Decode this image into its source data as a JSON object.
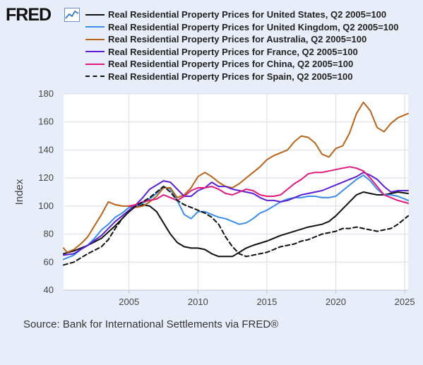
{
  "header": {
    "logo_text": "FRED",
    "logo_icon": "line-chart-icon"
  },
  "source_note": "Source: Bank for International Settlements via FRED®",
  "colors": {
    "panel_bg": "#e8eef9",
    "grid": "#d8dde6",
    "axis": "#bfc5cf"
  },
  "chart_data": {
    "type": "line",
    "xlabel": "",
    "ylabel": "Index",
    "xlim": [
      2000.25,
      2025.25
    ],
    "ylim": [
      40,
      180
    ],
    "yticks": [
      40,
      60,
      80,
      100,
      120,
      140,
      160,
      180
    ],
    "xticks": [
      2005,
      2010,
      2015,
      2020,
      2025
    ],
    "grid": true,
    "legend": "top",
    "series": [
      {
        "name": "Real Residential Property Prices for United States, Q2 2005=100",
        "color": "#111111",
        "dash": "solid",
        "points": [
          [
            2000.25,
            66
          ],
          [
            2001,
            68
          ],
          [
            2002,
            72
          ],
          [
            2003,
            77
          ],
          [
            2004,
            86
          ],
          [
            2005,
            96
          ],
          [
            2005.5,
            100
          ],
          [
            2006,
            101
          ],
          [
            2006.5,
            100
          ],
          [
            2007,
            96
          ],
          [
            2007.5,
            88
          ],
          [
            2008,
            80
          ],
          [
            2008.5,
            74
          ],
          [
            2009,
            71
          ],
          [
            2009.5,
            70
          ],
          [
            2010,
            70
          ],
          [
            2010.5,
            69
          ],
          [
            2011,
            66
          ],
          [
            2011.5,
            64
          ],
          [
            2012,
            64
          ],
          [
            2012.5,
            64
          ],
          [
            2013,
            67
          ],
          [
            2013.5,
            70
          ],
          [
            2014,
            72
          ],
          [
            2015,
            75
          ],
          [
            2016,
            79
          ],
          [
            2017,
            82
          ],
          [
            2018,
            85
          ],
          [
            2019,
            87
          ],
          [
            2019.5,
            89
          ],
          [
            2020,
            93
          ],
          [
            2020.5,
            98
          ],
          [
            2021,
            103
          ],
          [
            2021.5,
            108
          ],
          [
            2022,
            110
          ],
          [
            2022.5,
            109
          ],
          [
            2023,
            108
          ],
          [
            2023.5,
            108
          ],
          [
            2024,
            109
          ],
          [
            2024.5,
            110
          ],
          [
            2025.25,
            109
          ]
        ]
      },
      {
        "name": "Real Residential Property Prices for United Kingdom, Q2 2005=100",
        "color": "#3a8ee6",
        "dash": "solid",
        "points": [
          [
            2000.25,
            62
          ],
          [
            2001,
            65
          ],
          [
            2001.5,
            69
          ],
          [
            2002,
            72
          ],
          [
            2002.5,
            77
          ],
          [
            2003,
            83
          ],
          [
            2003.5,
            87
          ],
          [
            2004,
            92
          ],
          [
            2004.5,
            95
          ],
          [
            2005,
            99
          ],
          [
            2005.5,
            100
          ],
          [
            2006,
            102
          ],
          [
            2006.5,
            105
          ],
          [
            2007,
            109
          ],
          [
            2007.5,
            114
          ],
          [
            2008,
            112
          ],
          [
            2008.5,
            104
          ],
          [
            2009,
            94
          ],
          [
            2009.5,
            91
          ],
          [
            2010,
            96
          ],
          [
            2010.5,
            96
          ],
          [
            2011,
            94
          ],
          [
            2011.5,
            92
          ],
          [
            2012,
            91
          ],
          [
            2012.5,
            89
          ],
          [
            2013,
            87
          ],
          [
            2013.5,
            88
          ],
          [
            2014,
            91
          ],
          [
            2014.5,
            95
          ],
          [
            2015,
            97
          ],
          [
            2015.5,
            100
          ],
          [
            2016,
            103
          ],
          [
            2016.5,
            105
          ],
          [
            2017,
            106
          ],
          [
            2017.5,
            106
          ],
          [
            2018,
            107
          ],
          [
            2018.5,
            107
          ],
          [
            2019,
            106
          ],
          [
            2019.5,
            106
          ],
          [
            2020,
            107
          ],
          [
            2020.5,
            111
          ],
          [
            2021,
            115
          ],
          [
            2021.5,
            119
          ],
          [
            2022,
            122
          ],
          [
            2022.5,
            118
          ],
          [
            2023,
            112
          ],
          [
            2023.5,
            108
          ],
          [
            2024,
            108
          ],
          [
            2024.5,
            107
          ],
          [
            2025.25,
            104
          ]
        ]
      },
      {
        "name": "Real Residential Property Prices for Australia, Q2 2005=100",
        "color": "#b8641a",
        "dash": "solid",
        "points": [
          [
            2000.25,
            70
          ],
          [
            2000.5,
            67
          ],
          [
            2001,
            69
          ],
          [
            2001.5,
            73
          ],
          [
            2002,
            78
          ],
          [
            2002.5,
            86
          ],
          [
            2003,
            94
          ],
          [
            2003.5,
            103
          ],
          [
            2004,
            101
          ],
          [
            2004.5,
            100
          ],
          [
            2005,
            100
          ],
          [
            2005.5,
            99
          ],
          [
            2006,
            100
          ],
          [
            2006.5,
            103
          ],
          [
            2007,
            107
          ],
          [
            2007.5,
            113
          ],
          [
            2008,
            113
          ],
          [
            2008.5,
            106
          ],
          [
            2009,
            108
          ],
          [
            2009.5,
            113
          ],
          [
            2010,
            121
          ],
          [
            2010.5,
            124
          ],
          [
            2011,
            121
          ],
          [
            2011.5,
            117
          ],
          [
            2012,
            114
          ],
          [
            2012.5,
            113
          ],
          [
            2013,
            116
          ],
          [
            2013.5,
            120
          ],
          [
            2014,
            124
          ],
          [
            2014.5,
            128
          ],
          [
            2015,
            133
          ],
          [
            2015.5,
            136
          ],
          [
            2016,
            138
          ],
          [
            2016.5,
            140
          ],
          [
            2017,
            146
          ],
          [
            2017.5,
            150
          ],
          [
            2018,
            149
          ],
          [
            2018.5,
            145
          ],
          [
            2019,
            137
          ],
          [
            2019.5,
            135
          ],
          [
            2020,
            141
          ],
          [
            2020.5,
            143
          ],
          [
            2021,
            152
          ],
          [
            2021.5,
            166
          ],
          [
            2022,
            174
          ],
          [
            2022.5,
            168
          ],
          [
            2023,
            156
          ],
          [
            2023.5,
            153
          ],
          [
            2024,
            159
          ],
          [
            2024.5,
            163
          ],
          [
            2025,
            165
          ],
          [
            2025.25,
            166
          ]
        ]
      },
      {
        "name": "Real Residential Property Prices for France, Q2 2005=100",
        "color": "#5b1fd6",
        "dash": "solid",
        "points": [
          [
            2000.25,
            65
          ],
          [
            2001,
            66
          ],
          [
            2001.5,
            69
          ],
          [
            2002,
            72
          ],
          [
            2003,
            79
          ],
          [
            2004,
            89
          ],
          [
            2004.5,
            93
          ],
          [
            2005,
            97
          ],
          [
            2005.5,
            101
          ],
          [
            2006,
            106
          ],
          [
            2006.5,
            112
          ],
          [
            2007,
            115
          ],
          [
            2007.5,
            118
          ],
          [
            2008,
            117
          ],
          [
            2008.5,
            112
          ],
          [
            2009,
            107
          ],
          [
            2009.5,
            107
          ],
          [
            2010,
            111
          ],
          [
            2010.5,
            113
          ],
          [
            2011,
            117
          ],
          [
            2011.5,
            114
          ],
          [
            2012,
            114
          ],
          [
            2012.5,
            112
          ],
          [
            2013,
            111
          ],
          [
            2013.5,
            110
          ],
          [
            2014,
            109
          ],
          [
            2014.5,
            106
          ],
          [
            2015,
            104
          ],
          [
            2015.5,
            104
          ],
          [
            2016,
            103
          ],
          [
            2016.5,
            104
          ],
          [
            2017,
            106
          ],
          [
            2017.5,
            108
          ],
          [
            2018,
            109
          ],
          [
            2018.5,
            110
          ],
          [
            2019,
            111
          ],
          [
            2019.5,
            113
          ],
          [
            2020,
            115
          ],
          [
            2020.5,
            117
          ],
          [
            2021,
            119
          ],
          [
            2021.5,
            121
          ],
          [
            2022,
            124
          ],
          [
            2022.5,
            122
          ],
          [
            2023,
            119
          ],
          [
            2023.5,
            114
          ],
          [
            2024,
            110
          ],
          [
            2024.5,
            111
          ],
          [
            2025.25,
            111
          ]
        ]
      },
      {
        "name": "Real Residential Property Prices for China, Q2 2005=100",
        "color": "#e0197f",
        "dash": "solid",
        "points": [
          [
            2005,
            100
          ],
          [
            2005.5,
            101
          ],
          [
            2006,
            103
          ],
          [
            2006.5,
            104
          ],
          [
            2007,
            105
          ],
          [
            2007.5,
            108
          ],
          [
            2008,
            106
          ],
          [
            2008.5,
            104
          ],
          [
            2009,
            107
          ],
          [
            2009.5,
            111
          ],
          [
            2010,
            113
          ],
          [
            2010.5,
            113
          ],
          [
            2011,
            114
          ],
          [
            2011.5,
            112
          ],
          [
            2012,
            109
          ],
          [
            2012.5,
            108
          ],
          [
            2013,
            110
          ],
          [
            2013.5,
            112
          ],
          [
            2014,
            111
          ],
          [
            2014.5,
            108
          ],
          [
            2015,
            107
          ],
          [
            2015.5,
            107
          ],
          [
            2016,
            108
          ],
          [
            2016.5,
            112
          ],
          [
            2017,
            116
          ],
          [
            2017.5,
            119
          ],
          [
            2018,
            123
          ],
          [
            2018.5,
            124
          ],
          [
            2019,
            124
          ],
          [
            2019.5,
            125
          ],
          [
            2020,
            126
          ],
          [
            2020.5,
            127
          ],
          [
            2021,
            128
          ],
          [
            2021.5,
            127
          ],
          [
            2022,
            125
          ],
          [
            2022.5,
            120
          ],
          [
            2023,
            114
          ],
          [
            2023.5,
            108
          ],
          [
            2024,
            106
          ],
          [
            2024.5,
            104
          ],
          [
            2025.25,
            102
          ]
        ]
      },
      {
        "name": "Real Residential Property Prices for Spain, Q2 2005=100",
        "color": "#111111",
        "dash": "dashed",
        "points": [
          [
            2000.25,
            58
          ],
          [
            2001,
            60
          ],
          [
            2001.5,
            63
          ],
          [
            2002,
            66
          ],
          [
            2003,
            71
          ],
          [
            2003.5,
            76
          ],
          [
            2004,
            84
          ],
          [
            2004.5,
            91
          ],
          [
            2005,
            96
          ],
          [
            2005.5,
            100
          ],
          [
            2006,
            103
          ],
          [
            2006.5,
            106
          ],
          [
            2007,
            110
          ],
          [
            2007.5,
            114
          ],
          [
            2008,
            110
          ],
          [
            2008.5,
            104
          ],
          [
            2009,
            101
          ],
          [
            2009.5,
            99
          ],
          [
            2010,
            97
          ],
          [
            2010.5,
            95
          ],
          [
            2011,
            92
          ],
          [
            2011.5,
            87
          ],
          [
            2012,
            78
          ],
          [
            2012.5,
            71
          ],
          [
            2013,
            66
          ],
          [
            2013.5,
            64
          ],
          [
            2014,
            65
          ],
          [
            2014.5,
            66
          ],
          [
            2015,
            67
          ],
          [
            2015.5,
            69
          ],
          [
            2016,
            71
          ],
          [
            2016.5,
            72
          ],
          [
            2017,
            73
          ],
          [
            2017.5,
            75
          ],
          [
            2018,
            76
          ],
          [
            2018.5,
            78
          ],
          [
            2019,
            80
          ],
          [
            2019.5,
            81
          ],
          [
            2020,
            82
          ],
          [
            2020.5,
            84
          ],
          [
            2021,
            84
          ],
          [
            2021.5,
            85
          ],
          [
            2022,
            84
          ],
          [
            2022.5,
            83
          ],
          [
            2023,
            82
          ],
          [
            2023.5,
            83
          ],
          [
            2024,
            84
          ],
          [
            2024.5,
            87
          ],
          [
            2025.25,
            93
          ]
        ]
      }
    ]
  }
}
